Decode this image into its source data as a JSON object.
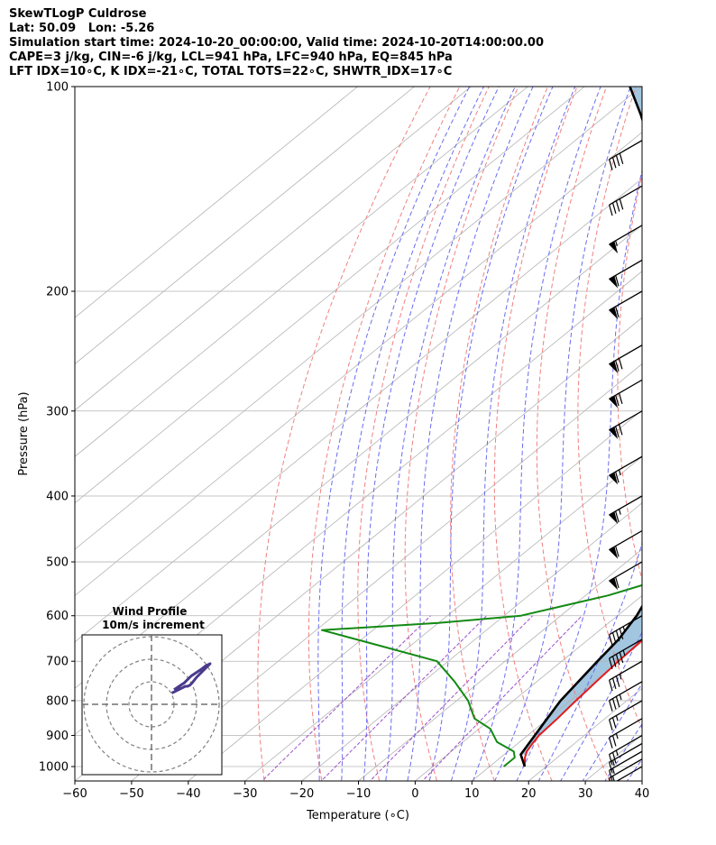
{
  "header": {
    "line1": "SkewTLogP Culdrose",
    "line2": "Lat: 50.09   Lon: -5.26",
    "line3": "Simulation start time: 2024-10-20_00:00:00, Valid time: 2024-10-20T14:00:00.00",
    "line4": "CAPE=3 j/kg, CIN=-6 j/kg, LCL=941 hPa, LFC=940 hPa, EQ=845 hPa",
    "line5": "LFT IDX=10∘C, K IDX=-21∘C, TOTAL TOTS=22∘C, SHWTR_IDX=17∘C"
  },
  "chart_data": {
    "type": "line",
    "subtype": "skew-t log-p",
    "xlabel": "Temperature (∘C)",
    "ylabel": "Pressure (hPa)",
    "xlim": [
      -60,
      40
    ],
    "ylim": [
      1050,
      100
    ],
    "y_scale": "log",
    "x_ticks": [
      -60,
      -50,
      -40,
      -30,
      -20,
      -10,
      0,
      10,
      20,
      30,
      40
    ],
    "x_tick_labels": [
      "−60",
      "−50",
      "−40",
      "−30",
      "−20",
      "−10",
      "0",
      "10",
      "20",
      "30",
      "40"
    ],
    "y_ticks": [
      1000,
      900,
      800,
      700,
      600,
      500,
      400,
      300,
      200,
      100
    ],
    "y_tick_labels": [
      "1000",
      "900",
      "800",
      "700",
      "600",
      "500",
      "400",
      "300",
      "200",
      "100"
    ],
    "grid": true,
    "colors": {
      "temperature": "#e31a1c",
      "dewpoint": "#138a13",
      "parcel": "#000000",
      "shade": "#a2c6e0",
      "dry_adiabat": "#f08080",
      "moist_adiabat": "#6b6bf0",
      "mixing_ratio": "#9b4fc8",
      "isotherm": "#b4b4b4",
      "hodograph": "#4b3a8c"
    },
    "series": [
      {
        "key": "temperature",
        "points": [
          [
            16.2,
            1000
          ],
          [
            14.3,
            970
          ],
          [
            13.3,
            950
          ],
          [
            12.6,
            925
          ],
          [
            12.0,
            900
          ],
          [
            11.6,
            850
          ],
          [
            11.0,
            800
          ],
          [
            10.5,
            750
          ],
          [
            10.0,
            700
          ],
          [
            9.6,
            650
          ],
          [
            9.2,
            600
          ],
          [
            8.3,
            550
          ],
          [
            6.8,
            500
          ],
          [
            5.0,
            450
          ],
          [
            3.5,
            400
          ],
          [
            1.2,
            350
          ],
          [
            -2.0,
            300
          ],
          [
            -8.0,
            250
          ],
          [
            -14.0,
            210
          ],
          [
            -16.0,
            200
          ],
          [
            -16.0,
            185
          ],
          [
            -16.0,
            170
          ],
          [
            -14.5,
            155
          ],
          [
            -12.5,
            145
          ],
          [
            -11.0,
            135
          ],
          [
            -10.5,
            125
          ],
          [
            -10.5,
            115
          ],
          [
            -10.5,
            105
          ],
          [
            -10.3,
            100
          ]
        ]
      },
      {
        "key": "dewpoint",
        "points": [
          [
            12.5,
            1000
          ],
          [
            12.5,
            970
          ],
          [
            11.0,
            950
          ],
          [
            6.0,
            920
          ],
          [
            2.0,
            880
          ],
          [
            -3.0,
            850
          ],
          [
            -8.0,
            800
          ],
          [
            -14.5,
            750
          ],
          [
            -22.0,
            700
          ],
          [
            -37.0,
            660
          ],
          [
            -49.0,
            630
          ],
          [
            -30.0,
            615
          ],
          [
            -17.0,
            600
          ],
          [
            -6.0,
            560
          ],
          [
            0.0,
            530
          ],
          [
            2.5,
            500
          ],
          [
            1.0,
            450
          ],
          [
            -3.0,
            400
          ],
          [
            -8.0,
            350
          ],
          [
            -13.0,
            300
          ],
          [
            -17.5,
            265
          ],
          [
            -18.0,
            245
          ],
          [
            -19.0,
            220
          ],
          [
            -21.5,
            200
          ],
          [
            -23.0,
            185
          ],
          [
            -23.5,
            170
          ],
          [
            -24.0,
            160
          ],
          [
            -25.5,
            150
          ],
          [
            -27.0,
            140
          ],
          [
            -26.5,
            130
          ],
          [
            -24.0,
            120
          ],
          [
            -21.0,
            110
          ],
          [
            -19.0,
            100
          ]
        ]
      },
      {
        "key": "parcel",
        "points": [
          [
            16.2,
            1000
          ],
          [
            12.9,
            960
          ],
          [
            12.4,
            941
          ],
          [
            9.8,
            850
          ],
          [
            8.3,
            800
          ],
          [
            6.3,
            700
          ],
          [
            5.3,
            650
          ],
          [
            3.4,
            600
          ],
          [
            0.5,
            550
          ],
          [
            -3.0,
            500
          ],
          [
            -11.0,
            400
          ],
          [
            -27.0,
            300
          ],
          [
            -53.0,
            200
          ],
          [
            -62.0,
            180
          ],
          [
            -78.0,
            150
          ],
          [
            -97.0,
            120
          ],
          [
            -104.0,
            110
          ],
          [
            -112.0,
            100
          ]
        ]
      }
    ],
    "wind_barbs": [
      {
        "p": 1000,
        "speed_kt": 15,
        "dir_deg": 240
      },
      {
        "p": 975,
        "speed_kt": 15,
        "dir_deg": 240
      },
      {
        "p": 950,
        "speed_kt": 15,
        "dir_deg": 240
      },
      {
        "p": 925,
        "speed_kt": 15,
        "dir_deg": 240
      },
      {
        "p": 900,
        "speed_kt": 25,
        "dir_deg": 240
      },
      {
        "p": 850,
        "speed_kt": 25,
        "dir_deg": 240
      },
      {
        "p": 800,
        "speed_kt": 25,
        "dir_deg": 240
      },
      {
        "p": 750,
        "speed_kt": 35,
        "dir_deg": 240
      },
      {
        "p": 700,
        "speed_kt": 35,
        "dir_deg": 240
      },
      {
        "p": 650,
        "speed_kt": 45,
        "dir_deg": 240
      },
      {
        "p": 600,
        "speed_kt": 45,
        "dir_deg": 240
      },
      {
        "p": 500,
        "speed_kt": 60,
        "dir_deg": 240
      },
      {
        "p": 450,
        "speed_kt": 60,
        "dir_deg": 240
      },
      {
        "p": 400,
        "speed_kt": 65,
        "dir_deg": 240
      },
      {
        "p": 350,
        "speed_kt": 65,
        "dir_deg": 240
      },
      {
        "p": 300,
        "speed_kt": 70,
        "dir_deg": 240
      },
      {
        "p": 270,
        "speed_kt": 70,
        "dir_deg": 240
      },
      {
        "p": 240,
        "speed_kt": 70,
        "dir_deg": 240
      },
      {
        "p": 200,
        "speed_kt": 60,
        "dir_deg": 240
      },
      {
        "p": 180,
        "speed_kt": 60,
        "dir_deg": 240
      },
      {
        "p": 160,
        "speed_kt": 55,
        "dir_deg": 240
      },
      {
        "p": 140,
        "speed_kt": 40,
        "dir_deg": 240
      },
      {
        "p": 120,
        "speed_kt": 40,
        "dir_deg": 240
      }
    ],
    "hodograph": {
      "title": "Wind Profile",
      "subtitle": "10m/s increment",
      "ring_step_ms": 10,
      "ring_count": 3,
      "points": [
        [
          10.0,
          6.5
        ],
        [
          11.5,
          7.5
        ],
        [
          13.0,
          8.5
        ],
        [
          14.5,
          9.5
        ],
        [
          16.0,
          11.0
        ],
        [
          17.5,
          12.5
        ],
        [
          19.0,
          13.5
        ],
        [
          20.5,
          14.5
        ],
        [
          22.0,
          15.5
        ],
        [
          24.0,
          17.0
        ],
        [
          26.0,
          18.0
        ],
        [
          24.0,
          16.0
        ],
        [
          22.0,
          14.0
        ],
        [
          20.0,
          12.0
        ],
        [
          18.0,
          9.5
        ],
        [
          17.0,
          8.5
        ],
        [
          16.0,
          8.0
        ],
        [
          15.0,
          8.0
        ],
        [
          14.0,
          7.5
        ],
        [
          13.0,
          7.0
        ],
        [
          12.0,
          6.5
        ],
        [
          11.0,
          6.0
        ],
        [
          10.0,
          5.5
        ],
        [
          9.0,
          5.0
        ]
      ]
    }
  }
}
